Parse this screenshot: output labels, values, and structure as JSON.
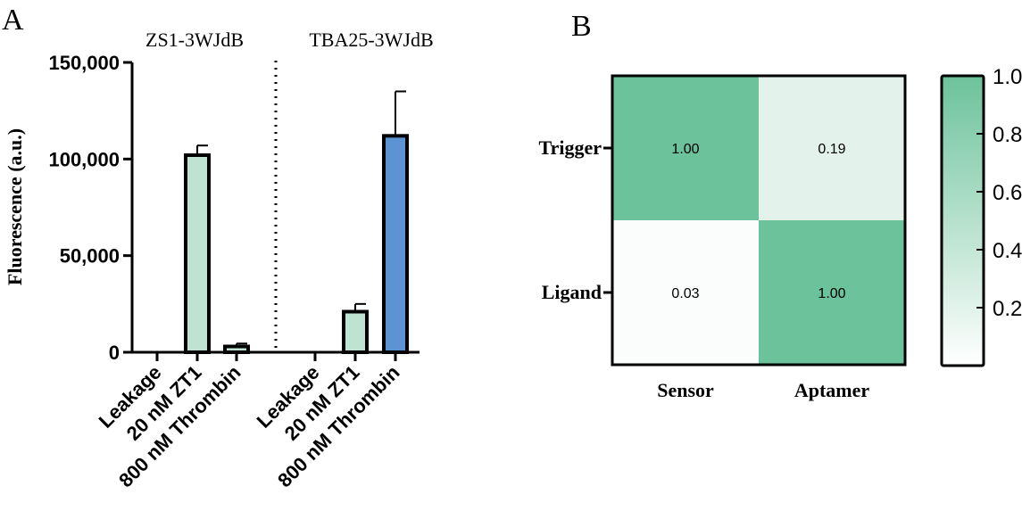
{
  "chart_data": [
    {
      "panel_label": "A",
      "type": "bar",
      "ylabel": "Fluorescence (a.u.)",
      "ylim": [
        0,
        150000
      ],
      "yticks": [
        "0",
        "50,000",
        "100,000",
        "150,000"
      ],
      "ytick_values": [
        0,
        50000,
        100000,
        150000
      ],
      "categories": [
        "Leakage",
        "20 nM ZT1",
        "800 nM Thrombin",
        "Leakage",
        "20 nM ZT1",
        "800 nM Thrombin"
      ],
      "groups": [
        {
          "name": "ZS1-3WJdB",
          "categories": [
            "Leakage",
            "20 nM ZT1",
            "800 nM Thrombin"
          ],
          "values": [
            0,
            102000,
            3000
          ],
          "errors": [
            0,
            5000,
            1500
          ],
          "colors": [
            "#bfe3d3",
            "#bfe3d3",
            "#bfe3d3"
          ]
        },
        {
          "name": "TBA25-3WJdB",
          "categories": [
            "Leakage",
            "20 nM ZT1",
            "800 nM Thrombin"
          ],
          "values": [
            0,
            21000,
            112000
          ],
          "errors": [
            0,
            4000,
            23000
          ],
          "colors": [
            "#bfe3d3",
            "#bfe3d3",
            "#5b93d3"
          ]
        }
      ]
    },
    {
      "panel_label": "B",
      "type": "heatmap",
      "rows": [
        "Trigger",
        "Ligand"
      ],
      "columns": [
        "Sensor",
        "Aptamer"
      ],
      "values": [
        [
          1.0,
          0.19
        ],
        [
          0.03,
          1.0
        ]
      ],
      "cell_labels": [
        [
          "1.00",
          "0.19"
        ],
        [
          "0.03",
          "1.00"
        ]
      ],
      "colorbar": {
        "range": [
          0,
          1
        ],
        "ticks": [
          0.2,
          0.4,
          0.6,
          0.8,
          1.0
        ],
        "tick_labels": [
          "0.2",
          "0.4",
          "0.6",
          "0.8",
          "1.0"
        ],
        "color_low": "#ffffff",
        "color_high": "#6cc29b"
      }
    }
  ]
}
